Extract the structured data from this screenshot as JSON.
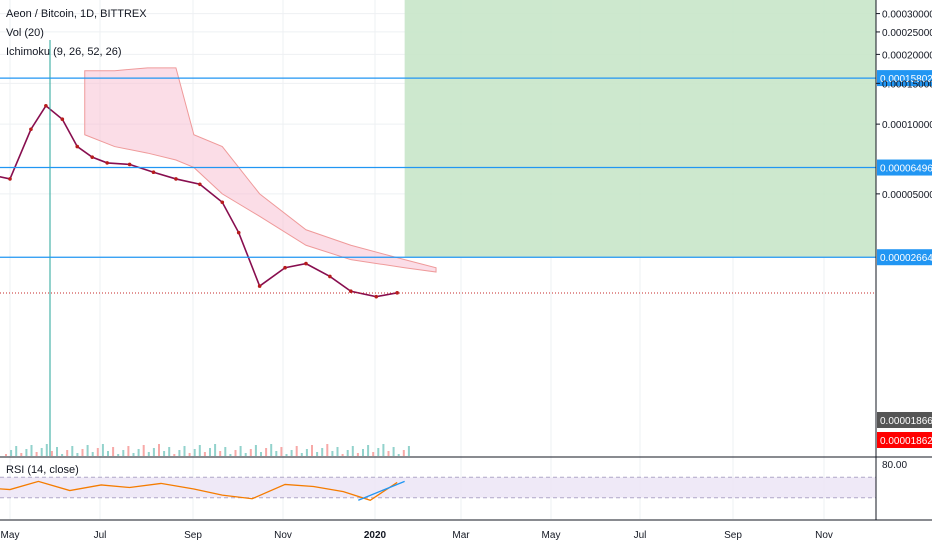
{
  "chart_data": {
    "type": "line",
    "symbol_title": "Aeon / Bitcoin, 1D, BITTREX",
    "indicators": [
      "Vol (20)",
      "Ichimoku (9, 26, 52, 26)"
    ],
    "price_axis": {
      "ticks": [
        {
          "value": 0.0003,
          "label": "0.00030000"
        },
        {
          "value": 0.00025,
          "label": "0.00025000"
        },
        {
          "value": 0.0002,
          "label": "0.00020000"
        },
        {
          "value": 0.00015,
          "label": "0.00015000"
        },
        {
          "value": 0.0001,
          "label": "0.00010000"
        },
        {
          "value": 5e-05,
          "label": "0.00005000"
        }
      ],
      "ylim": [
        4e-06,
        0.00033
      ]
    },
    "horizontal_levels": [
      {
        "value": 0.00015802,
        "label": "0.00015802",
        "color": "#2196f3"
      },
      {
        "value": 6.496e-05,
        "label": "0.00006496",
        "color": "#2196f3"
      },
      {
        "value": 2.664e-05,
        "label": "0.00002664",
        "color": "#2196f3"
      }
    ],
    "price_badges": [
      {
        "value": 1.866e-05,
        "label": "0.00001866",
        "color": "#555555"
      },
      {
        "value": 1.862e-05,
        "label": "0.00001862",
        "color": "#ff0000"
      }
    ],
    "time_axis": [
      "May",
      "Jul",
      "Sep",
      "Nov",
      "2020",
      "Mar",
      "May",
      "Jul",
      "Sep",
      "Nov"
    ],
    "highlight_zone": {
      "from": "2020-01-20",
      "to": "2020-12-31",
      "color": "#c8e6c9"
    },
    "price_series": [
      {
        "x": "2019-04-01",
        "y": 6.5e-05
      },
      {
        "x": "2019-04-15",
        "y": 6.1e-05
      },
      {
        "x": "2019-05-01",
        "y": 5.8e-05
      },
      {
        "x": "2019-05-15",
        "y": 9.5e-05
      },
      {
        "x": "2019-05-25",
        "y": 0.00012
      },
      {
        "x": "2019-06-05",
        "y": 0.000105
      },
      {
        "x": "2019-06-15",
        "y": 8e-05
      },
      {
        "x": "2019-06-25",
        "y": 7.2e-05
      },
      {
        "x": "2019-07-05",
        "y": 6.8e-05
      },
      {
        "x": "2019-07-20",
        "y": 6.7e-05
      },
      {
        "x": "2019-08-05",
        "y": 6.2e-05
      },
      {
        "x": "2019-08-20",
        "y": 5.8e-05
      },
      {
        "x": "2019-09-05",
        "y": 5.5e-05
      },
      {
        "x": "2019-09-20",
        "y": 4.6e-05
      },
      {
        "x": "2019-10-01",
        "y": 3.4e-05
      },
      {
        "x": "2019-10-15",
        "y": 2e-05
      },
      {
        "x": "2019-11-01",
        "y": 2.4e-05
      },
      {
        "x": "2019-11-15",
        "y": 2.5e-05
      },
      {
        "x": "2019-12-01",
        "y": 2.2e-05
      },
      {
        "x": "2019-12-15",
        "y": 1.9e-05
      },
      {
        "x": "2020-01-01",
        "y": 1.8e-05
      },
      {
        "x": "2020-01-15",
        "y": 1.87e-05
      }
    ],
    "rsi": {
      "label": "RSI (14, close)",
      "ticks": [
        {
          "value": 80,
          "label": "80.00"
        }
      ],
      "bands": [
        70,
        30
      ],
      "range": [
        0,
        100
      ],
      "values": [
        {
          "x": "2019-04-01",
          "y": 52
        },
        {
          "x": "2019-05-01",
          "y": 46
        },
        {
          "x": "2019-05-20",
          "y": 62
        },
        {
          "x": "2019-06-10",
          "y": 44
        },
        {
          "x": "2019-07-01",
          "y": 55
        },
        {
          "x": "2019-07-20",
          "y": 50
        },
        {
          "x": "2019-08-10",
          "y": 58
        },
        {
          "x": "2019-09-01",
          "y": 47
        },
        {
          "x": "2019-09-20",
          "y": 35
        },
        {
          "x": "2019-10-10",
          "y": 28
        },
        {
          "x": "2019-11-01",
          "y": 56
        },
        {
          "x": "2019-11-20",
          "y": 52
        },
        {
          "x": "2019-12-10",
          "y": 42
        },
        {
          "x": "2019-12-28",
          "y": 25
        },
        {
          "x": "2020-01-15",
          "y": 60
        }
      ]
    }
  }
}
